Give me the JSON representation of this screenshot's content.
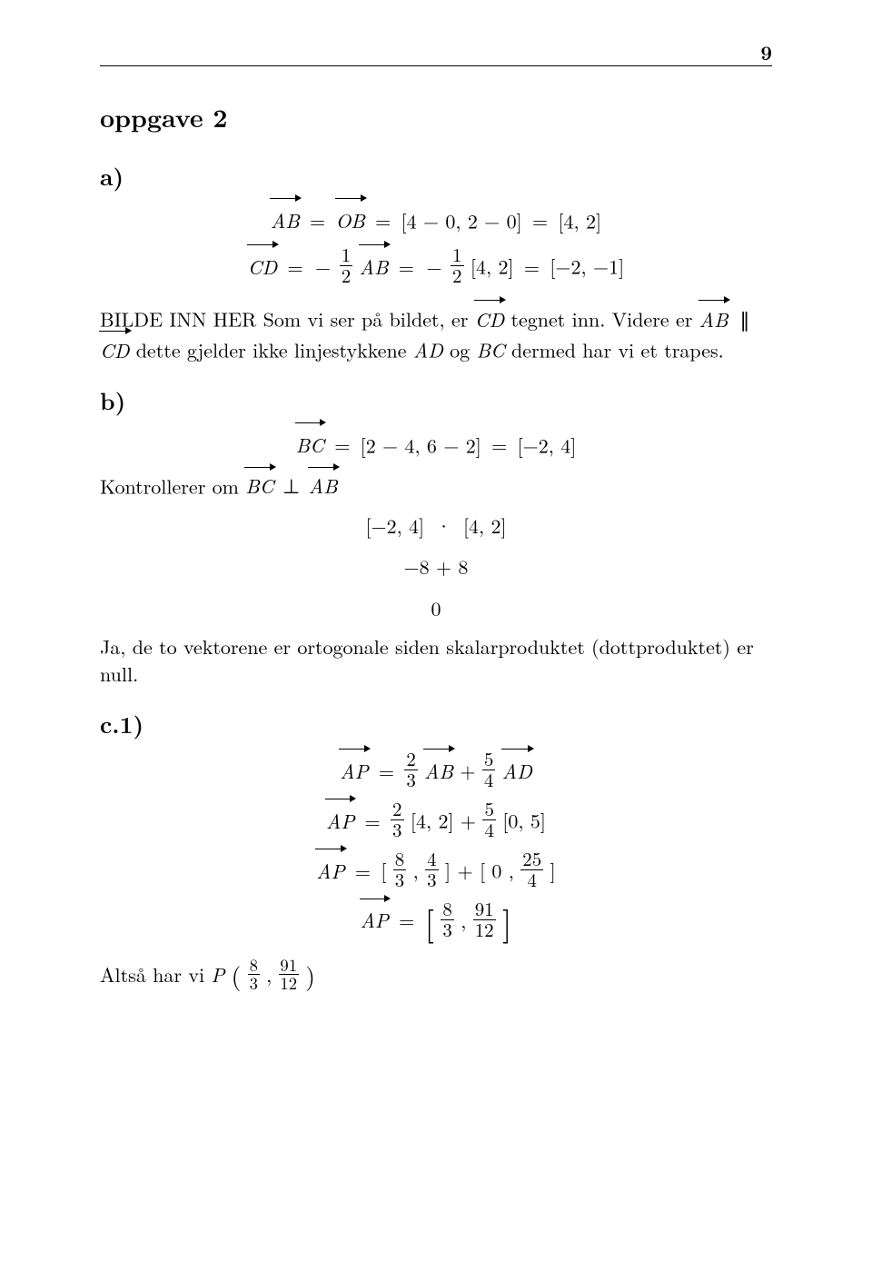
{
  "meta": {
    "page_number": "9",
    "background_color": "#ffffff",
    "text_color": "#000000",
    "font_family": "Computer Modern / Latin Modern (serif)"
  },
  "title": "oppgave 2",
  "parts": {
    "a": {
      "label": "a)",
      "eq1": {
        "lhs_vec": "AB",
        "rhs_vec": "OB",
        "step": "[4 − 0, 2 − 0]",
        "result": "[4, 2]"
      },
      "eq2": {
        "lhs_vec": "CD",
        "coef_num": "1",
        "coef_den": "2",
        "rhs_vec": "AB",
        "step_coef_num": "1",
        "step_coef_den": "2",
        "step_bracket": "[4, 2]",
        "result": "[−2, −1]"
      },
      "text_pre": "BILDE INN HER Som vi ser på bildet, er ",
      "text_vec1": "CD",
      "text_mid1": " tegnet inn. Videre er ",
      "text_vec2": "AB",
      "text_vec3": "CD",
      "text_mid2": " dette gjelder ikke linjestykkene ",
      "seg1": "AD",
      "text_mid3": " og ",
      "seg2": "BC",
      "text_post": " dermed har vi et trapes."
    },
    "b": {
      "label": "b)",
      "eq1": {
        "lhs_vec": "BC",
        "step": "[2 − 4, 6 − 2]",
        "result": "[−2, 4]"
      },
      "kontroll_pre": "Kontrollerer om ",
      "kontroll_vec1": "BC",
      "kontroll_vec2": "AB",
      "dot": {
        "lhs": "[−2, 4]",
        "rhs": "[4, 2]"
      },
      "sum": "−8 + 8",
      "zero": "0",
      "conclusion": "Ja, de to vektorene er ortogonale siden skalarproduktet (dottproduktet) er null."
    },
    "c1": {
      "label": "c.1)",
      "eq1": {
        "lhs_vec": "AP",
        "c1_num": "2",
        "c1_den": "3",
        "v1": "AB",
        "plus": " + ",
        "c2_num": "5",
        "c2_den": "4",
        "v2": "AD"
      },
      "eq2": {
        "lhs_vec": "AP",
        "c1_num": "2",
        "c1_den": "3",
        "b1": "[4, 2]",
        "plus": " + ",
        "c2_num": "5",
        "c2_den": "4",
        "b2": "[0, 5]"
      },
      "eq3": {
        "lhs_vec": "AP",
        "b1a_num": "8",
        "b1a_den": "3",
        "b1b_num": "4",
        "b1b_den": "3",
        "plus": " + ",
        "b2a": "0",
        "b2b_num": "25",
        "b2b_den": "4"
      },
      "eq4": {
        "lhs_vec": "AP",
        "r1_num": "8",
        "r1_den": "3",
        "r2_num": "91",
        "r2_den": "12"
      },
      "final_pre": "Altså har vi ",
      "final_P": "P",
      "final_a_num": "8",
      "final_a_den": "3",
      "final_b_num": "91",
      "final_b_den": "12"
    }
  }
}
